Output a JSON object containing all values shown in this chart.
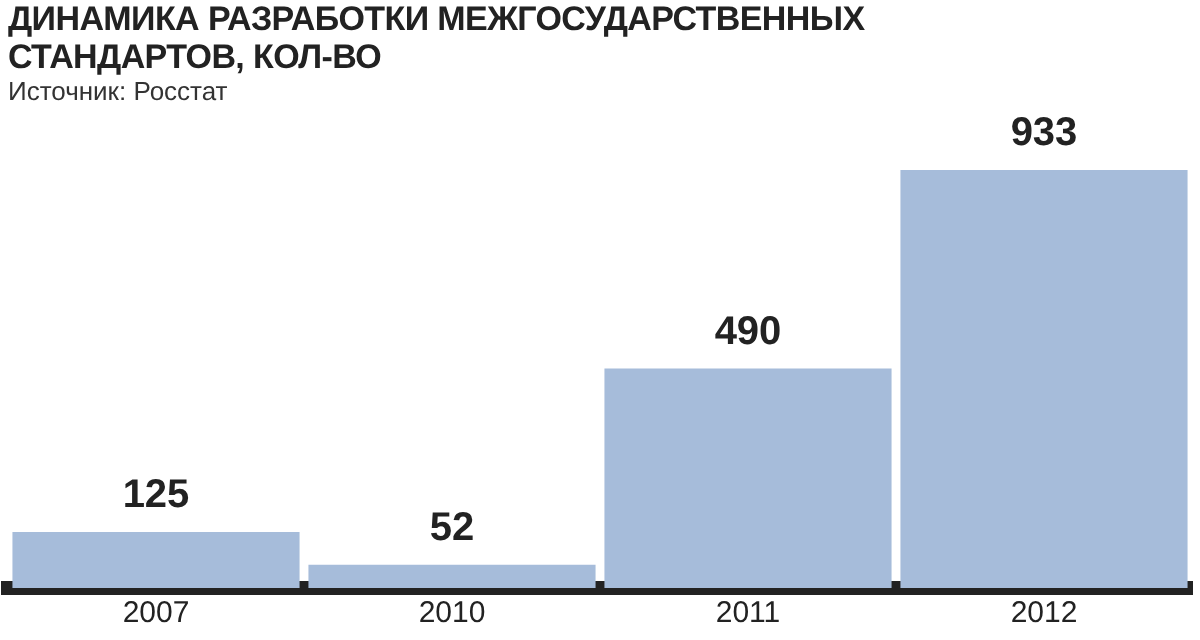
{
  "chart_data": {
    "type": "bar",
    "title": "ДИНАМИКА РАЗРАБОТКИ МЕЖГОСУДАРСТВЕННЫХ СТАНДАРТОВ, КОЛ-ВО",
    "annotations": [
      "Источник: Росстат"
    ],
    "categories": [
      "2007",
      "2010",
      "2011",
      "2012"
    ],
    "values": [
      125,
      52,
      490,
      933
    ],
    "color": "#a6bcda",
    "data_labels": true,
    "grid": false,
    "legend": false
  }
}
